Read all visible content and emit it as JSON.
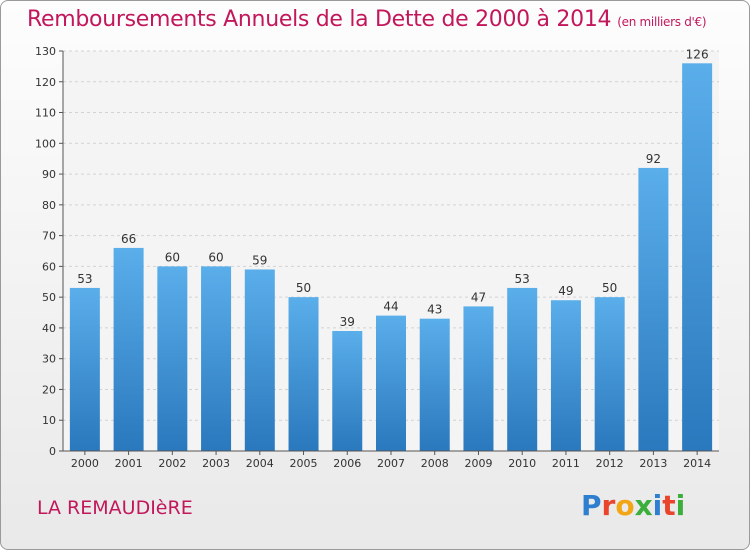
{
  "header": {
    "title": "Remboursements Annuels de la Dette de 2000 à 2014",
    "subtitle": "(en milliers d'€)"
  },
  "footer": {
    "place": "LA REMAUDIèRE",
    "logo_letters": [
      "P",
      "r",
      "o",
      "x",
      "i",
      "t",
      "i"
    ],
    "logo_colors": [
      "#2f7fd0",
      "#e8452c",
      "#f2a515",
      "#3cae3c",
      "#2f7fd0",
      "#e8452c",
      "#3cae3c"
    ]
  },
  "chart_data": {
    "type": "bar",
    "title": "Remboursements Annuels de la Dette de 2000 à 2014",
    "subtitle": "(en milliers d'€)",
    "xlabel": "",
    "ylabel": "",
    "categories": [
      "2000",
      "2001",
      "2002",
      "2003",
      "2004",
      "2005",
      "2006",
      "2007",
      "2008",
      "2009",
      "2010",
      "2011",
      "2012",
      "2013",
      "2014"
    ],
    "values": [
      53,
      66,
      60,
      60,
      59,
      50,
      39,
      44,
      43,
      47,
      53,
      49,
      50,
      92,
      126
    ],
    "ylim": [
      0,
      130
    ],
    "yticks": [
      0,
      10,
      20,
      30,
      40,
      50,
      60,
      70,
      80,
      90,
      100,
      110,
      120,
      130
    ],
    "grid": true,
    "bar_color": "#3a93d8",
    "data_labels": true
  }
}
